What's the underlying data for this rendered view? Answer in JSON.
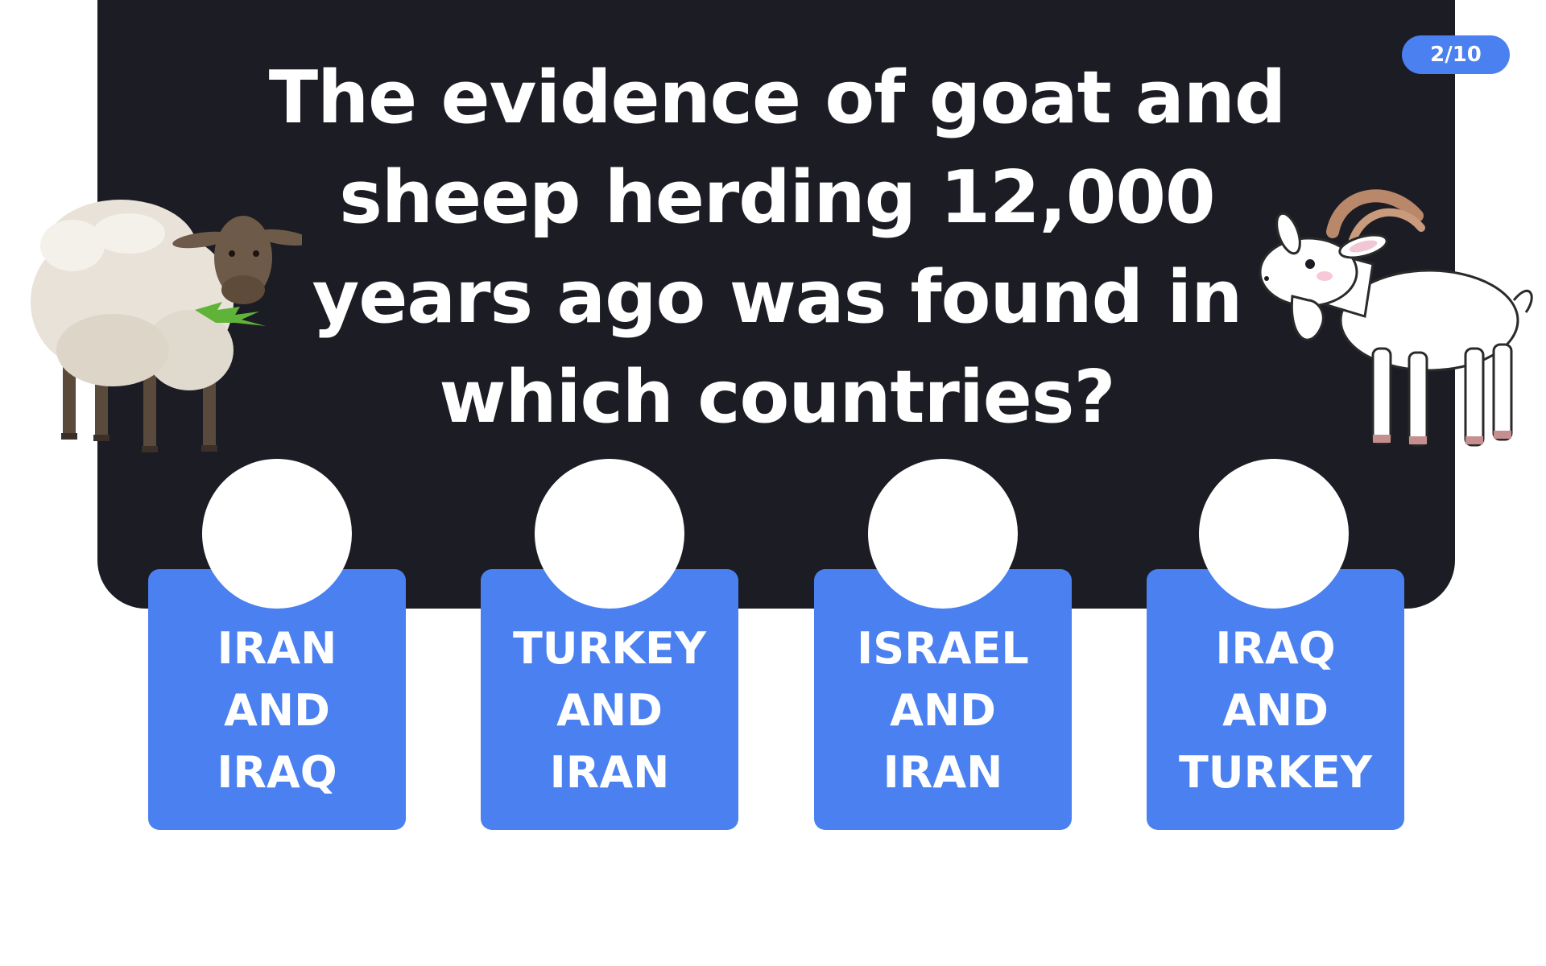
{
  "quiz": {
    "progress": "2/10",
    "question": "The evidence of goat and sheep herding 12,000 years ago was found in which countries?",
    "answers": [
      {
        "label": "IRAN\nAND\nIRAQ"
      },
      {
        "label": "TURKEY\nAND\nIRAN"
      },
      {
        "label": "ISRAEL\nAND\nIRAN"
      },
      {
        "label": "IRAQ\nAND\nTURKEY"
      }
    ]
  },
  "illustrations": {
    "left": "sheep-icon",
    "right": "goat-icon"
  },
  "colors": {
    "panel": "#1c1c24",
    "accent": "#4a80ef",
    "text": "#ffffff",
    "background": "#ffffff"
  }
}
